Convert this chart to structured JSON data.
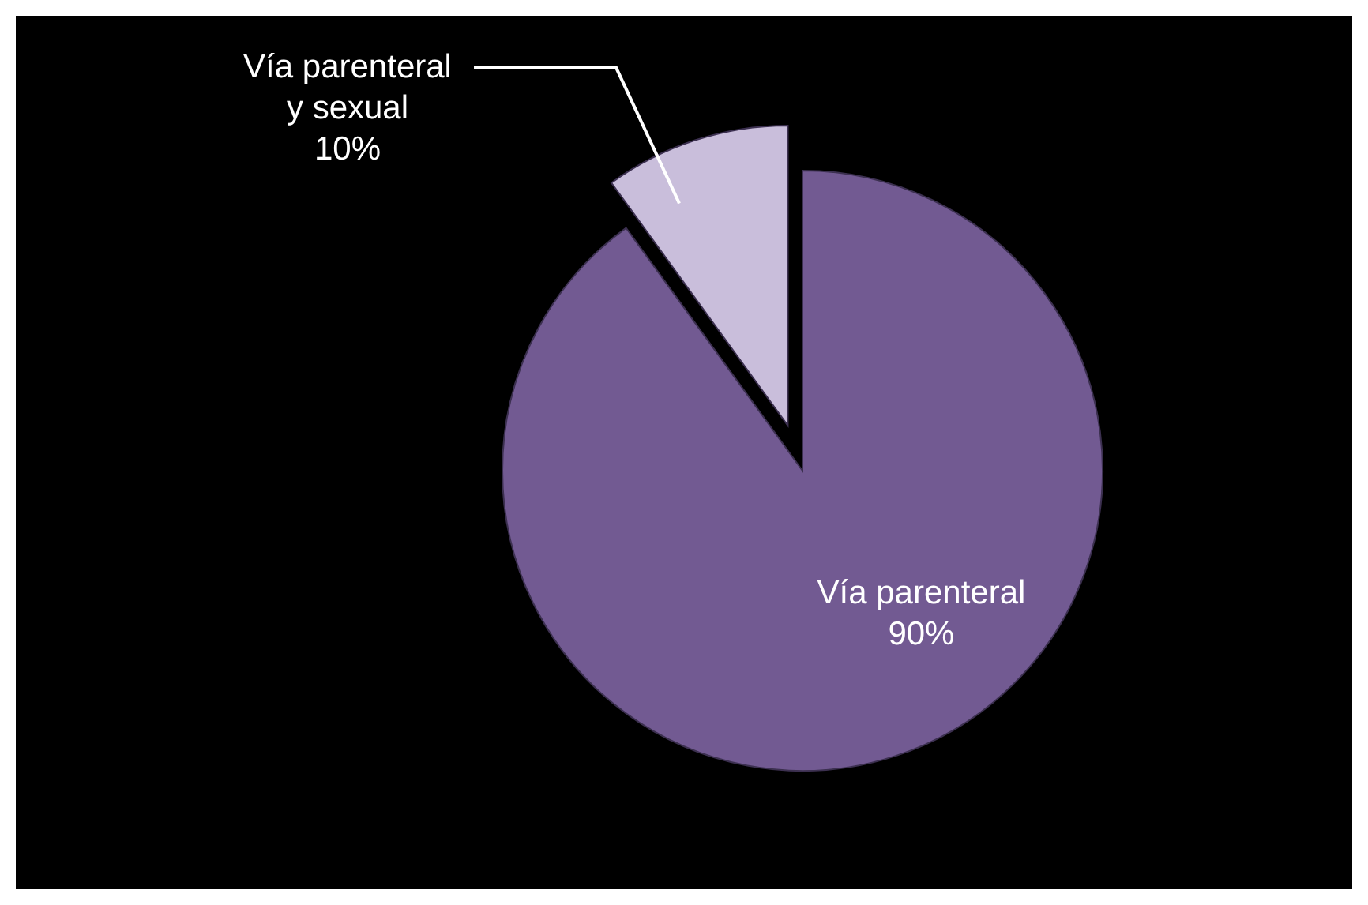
{
  "chart_data": {
    "type": "pie",
    "categories": [
      "Vía parenteral",
      "Vía parenteral y sexual"
    ],
    "values": [
      90,
      10
    ],
    "colors": [
      "#725a92",
      "#c9bedb"
    ],
    "value_labels": [
      "90%",
      "10%"
    ]
  }
}
